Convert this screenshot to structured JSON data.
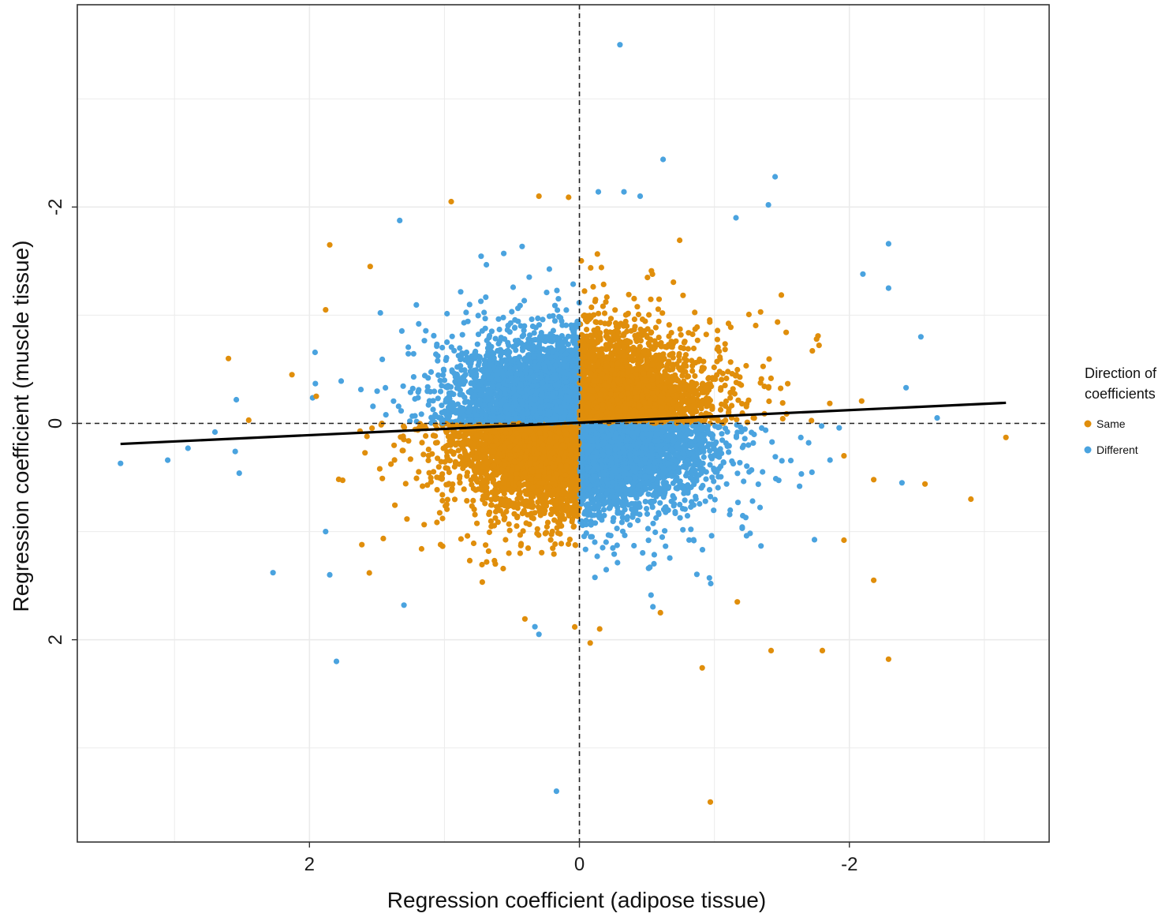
{
  "chart_data": {
    "type": "scatter",
    "title": "",
    "xlabel": "Regression coefficient (adipose tissue)",
    "ylabel": "Regression coefficient (muscle tissue)",
    "x_reversed": true,
    "y_reversed": true,
    "xlim": [
      3.72,
      -3.48
    ],
    "ylim": [
      -3.87,
      3.87
    ],
    "x_ticks": [
      2,
      0,
      -2
    ],
    "x_tick_labels": [
      "2",
      "0",
      "-2"
    ],
    "y_ticks": [
      -2,
      0,
      2
    ],
    "y_tick_labels": [
      "-2",
      "0",
      "2"
    ],
    "grid": true,
    "reference_lines": {
      "x": 0,
      "y": 0,
      "style": "dashed"
    },
    "fit_line": {
      "x": [
        3.4,
        -3.16
      ],
      "y": [
        0.19,
        -0.19
      ],
      "color": "#000000"
    },
    "legend": {
      "title_lines": [
        "Direction of",
        "coefficients"
      ],
      "placement": "right",
      "entries": [
        {
          "label": "Same",
          "color": "#E08E0B"
        },
        {
          "label": "Different",
          "color": "#4AA3DF"
        }
      ]
    },
    "series": [
      {
        "name": "Same",
        "color": "#E08E0B",
        "approx_point_count": 9000,
        "distribution_note": "dense cloud in quadrants where both coefficients share sign",
        "outliers": [
          {
            "x": 2.6,
            "y": -0.6
          },
          {
            "x": 1.85,
            "y": -1.65
          },
          {
            "x": 1.88,
            "y": -1.05
          },
          {
            "x": 1.55,
            "y": -1.45
          },
          {
            "x": 0.95,
            "y": -2.05
          },
          {
            "x": 0.3,
            "y": -2.1
          },
          {
            "x": 0.08,
            "y": -2.09
          },
          {
            "x": 2.45,
            "y": -0.03
          },
          {
            "x": 2.13,
            "y": -0.45
          },
          {
            "x": 1.95,
            "y": -0.25
          },
          {
            "x": -3.16,
            "y": 0.13
          },
          {
            "x": -2.9,
            "y": 0.7
          },
          {
            "x": -2.56,
            "y": 0.56
          },
          {
            "x": -2.18,
            "y": 0.52
          },
          {
            "x": -2.29,
            "y": 2.18
          },
          {
            "x": -2.18,
            "y": 1.45
          },
          {
            "x": -1.96,
            "y": 1.08
          },
          {
            "x": -1.8,
            "y": 2.1
          },
          {
            "x": -1.42,
            "y": 2.1
          },
          {
            "x": -0.91,
            "y": 2.26
          },
          {
            "x": -0.97,
            "y": 3.5
          },
          {
            "x": -0.6,
            "y": 1.75
          },
          {
            "x": -0.15,
            "y": 1.9
          },
          {
            "x": -0.08,
            "y": 2.03
          },
          {
            "x": -1.17,
            "y": 1.65
          },
          {
            "x": -1.96,
            "y": 0.3
          }
        ]
      },
      {
        "name": "Different",
        "color": "#4AA3DF",
        "approx_point_count": 9000,
        "distribution_note": "dense cloud in quadrants where coefficients have opposite signs",
        "outliers": [
          {
            "x": -0.3,
            "y": -3.5
          },
          {
            "x": -0.62,
            "y": -2.44
          },
          {
            "x": -1.45,
            "y": -2.28
          },
          {
            "x": -1.4,
            "y": -2.02
          },
          {
            "x": -1.16,
            "y": -1.9
          },
          {
            "x": -2.29,
            "y": -1.66
          },
          {
            "x": -2.29,
            "y": -1.25
          },
          {
            "x": -2.53,
            "y": -0.8
          },
          {
            "x": -2.1,
            "y": -1.38
          },
          {
            "x": -2.42,
            "y": -0.33
          },
          {
            "x": -2.65,
            "y": -0.05
          },
          {
            "x": -0.14,
            "y": -2.14
          },
          {
            "x": -0.33,
            "y": -2.14
          },
          {
            "x": -0.45,
            "y": -2.1
          },
          {
            "x": 3.4,
            "y": 0.37
          },
          {
            "x": 3.05,
            "y": 0.34
          },
          {
            "x": 2.9,
            "y": 0.23
          },
          {
            "x": 2.7,
            "y": 0.08
          },
          {
            "x": 2.55,
            "y": 0.26
          },
          {
            "x": 2.52,
            "y": 0.46
          },
          {
            "x": 2.27,
            "y": 1.38
          },
          {
            "x": 1.8,
            "y": 2.2
          },
          {
            "x": 1.85,
            "y": 1.4
          },
          {
            "x": 1.88,
            "y": 1.0
          },
          {
            "x": 1.3,
            "y": 1.68
          },
          {
            "x": 0.17,
            "y": 3.4
          },
          {
            "x": 0.3,
            "y": 1.95
          },
          {
            "x": 0.33,
            "y": 1.88
          }
        ]
      }
    ]
  }
}
